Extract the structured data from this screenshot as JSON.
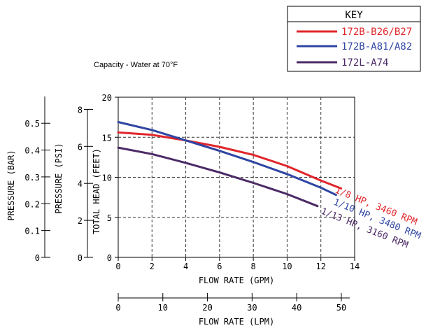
{
  "subtitle": "Capacity - Water at 70°F",
  "key": {
    "title": "KEY",
    "items": [
      {
        "label": "172B-B26/B27",
        "color": "#e0262b"
      },
      {
        "label": "172B-A81/A82",
        "color": "#2f45a3"
      },
      {
        "label": "172L-A74",
        "color": "#4b2a66"
      }
    ]
  },
  "chart_data": {
    "type": "line",
    "xlabel": "FLOW RATE (GPM)",
    "ylabel": "TOTAL HEAD (FEET)",
    "xlim": [
      0,
      14
    ],
    "ylim": [
      0,
      20
    ],
    "grid": true,
    "x_ticks": [
      0,
      2,
      4,
      6,
      8,
      10,
      12,
      14
    ],
    "y_ticks": [
      0,
      5,
      10,
      15,
      20
    ],
    "series": [
      {
        "name": "1/8 HP, 3460 RPM",
        "color": "#e0262b",
        "points": [
          [
            0,
            15.6
          ],
          [
            2,
            15.3
          ],
          [
            4,
            14.6
          ],
          [
            6,
            13.8
          ],
          [
            8,
            12.8
          ],
          [
            10,
            11.4
          ],
          [
            12,
            9.6
          ],
          [
            13.2,
            8.6
          ]
        ]
      },
      {
        "name": "1/10 HP, 3480 RPM",
        "color": "#2f45a3",
        "points": [
          [
            0,
            16.9
          ],
          [
            2,
            15.9
          ],
          [
            4,
            14.6
          ],
          [
            6,
            13.3
          ],
          [
            8,
            11.9
          ],
          [
            10,
            10.4
          ],
          [
            12,
            8.7
          ],
          [
            12.9,
            7.8
          ]
        ]
      },
      {
        "name": "1/13 HP, 3160 RPM",
        "color": "#4b2a66",
        "points": [
          [
            0,
            13.7
          ],
          [
            2,
            12.9
          ],
          [
            4,
            11.8
          ],
          [
            6,
            10.6
          ],
          [
            8,
            9.3
          ],
          [
            10,
            7.9
          ],
          [
            11.8,
            6.4
          ]
        ]
      }
    ],
    "secondary_axes": {
      "psi": {
        "label": "PRESSURE (PSI)",
        "range": [
          0,
          8
        ],
        "ticks": [
          0,
          2,
          4,
          6,
          8
        ]
      },
      "bar": {
        "label": "PRESSURE (BAR)",
        "range": [
          0,
          0.6
        ],
        "ticks": [
          "0",
          "0.1",
          "0.2",
          "0.3",
          "0.4",
          "0.5"
        ]
      },
      "lpm": {
        "label": "FLOW RATE (LPM)",
        "range": [
          0,
          50
        ],
        "ticks": [
          0,
          10,
          20,
          30,
          40,
          50
        ]
      }
    }
  }
}
